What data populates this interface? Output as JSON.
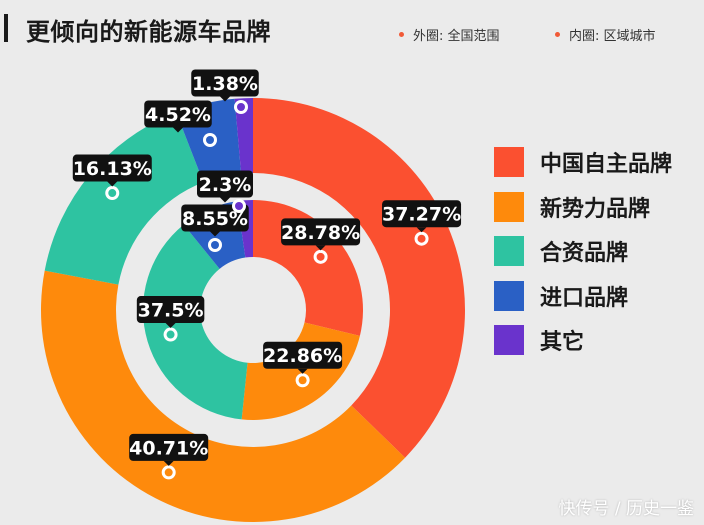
{
  "title": "更倾向的新能源车品牌",
  "notes": {
    "outer": "外圈: 全国范围",
    "inner": "内圈: 区域城市"
  },
  "watermark": "快传号 / 历史一鉴",
  "colors": {
    "background": "#ebebeb",
    "label_bg": "#111111",
    "label_text": "#ffffff",
    "note_dot": "#f15a37"
  },
  "chart_data": {
    "type": "pie",
    "variant": "nested-donut",
    "categories": [
      "中国自主品牌",
      "新势力品牌",
      "合资品牌",
      "进口品牌",
      "其它"
    ],
    "category_colors": [
      "#fb5030",
      "#fe8a0c",
      "#2ec3a1",
      "#2a60c5",
      "#6a33cc"
    ],
    "series": [
      {
        "name": "外圈: 全国范围",
        "values": [
          37.27,
          40.71,
          16.13,
          4.52,
          1.38
        ]
      },
      {
        "name": "内圈: 区域城市",
        "values": [
          28.78,
          22.86,
          37.5,
          8.55,
          2.3
        ]
      }
    ],
    "data_labels": [
      [
        "37.27%",
        "40.71%",
        "16.13%",
        "4.52%",
        "1.38%"
      ],
      [
        "28.78%",
        "22.86%",
        "37.5%",
        "8.55%",
        "2.3%"
      ]
    ],
    "legend_position": "right"
  }
}
